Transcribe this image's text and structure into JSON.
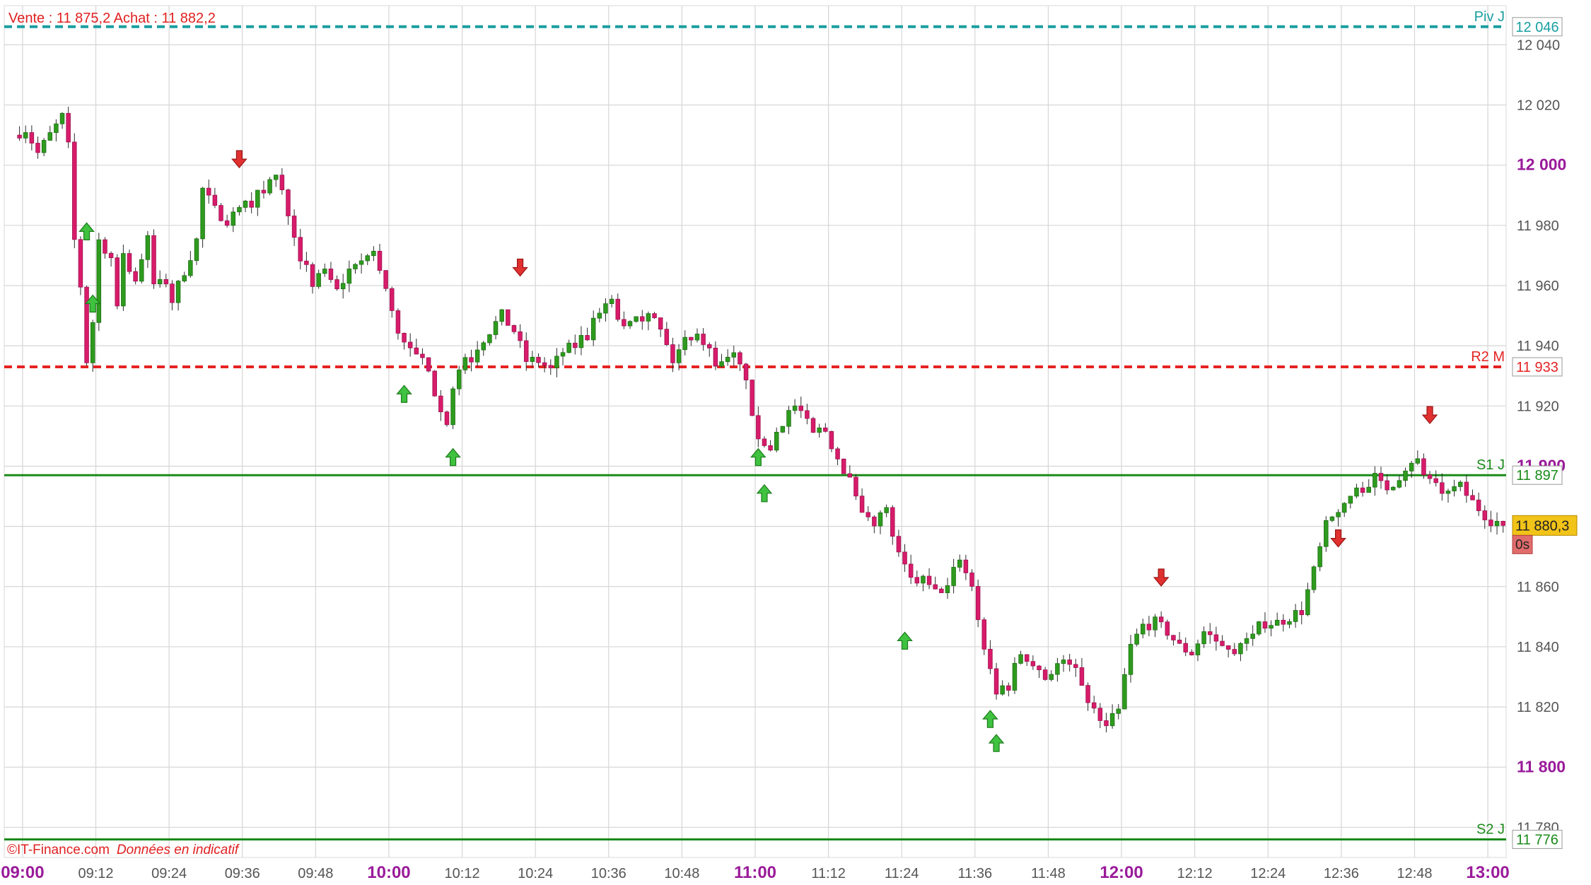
{
  "header": {
    "quote": "Vente : 11 875,2 Achat : 11 882,2"
  },
  "footer": {
    "copyright": "©IT-Finance.com",
    "disclaimer": "Données en indicatif"
  },
  "colors": {
    "bull": "#2e9b1e",
    "bear": "#d81b6a",
    "pivot": "#1a9ea0",
    "resistance": "#e52222",
    "support": "#1a8a1a",
    "axis_major": "#9a1a9a",
    "arrow_up": "#3fc23f",
    "arrow_down": "#e03030",
    "price_tag": "#f2c318",
    "timer_tag": "#e06c6c"
  },
  "chart_data": {
    "type": "candlestick",
    "interval_minutes": 1,
    "x_range": [
      "08:57",
      "13:03"
    ],
    "ylim": [
      11770,
      12053
    ],
    "y_ticks": [
      {
        "value": 11780,
        "label": "11 780",
        "major": false
      },
      {
        "value": 11800,
        "label": "11 800",
        "major": true
      },
      {
        "value": 11820,
        "label": "11 820",
        "major": false
      },
      {
        "value": 11840,
        "label": "11 840",
        "major": false
      },
      {
        "value": 11860,
        "label": "11 860",
        "major": false
      },
      {
        "value": 11880,
        "label": "11 880",
        "major": false
      },
      {
        "value": 11900,
        "label": "11 900",
        "major": true
      },
      {
        "value": 11920,
        "label": "11 920",
        "major": false
      },
      {
        "value": 11940,
        "label": "11 940",
        "major": false
      },
      {
        "value": 11960,
        "label": "11 960",
        "major": false
      },
      {
        "value": 11980,
        "label": "11 980",
        "major": false
      },
      {
        "value": 12000,
        "label": "12 000",
        "major": true
      },
      {
        "value": 12020,
        "label": "12 020",
        "major": false
      },
      {
        "value": 12040,
        "label": "12 040",
        "major": false
      }
    ],
    "x_ticks": [
      {
        "time": "09:00",
        "major": true
      },
      {
        "time": "09:12",
        "major": false
      },
      {
        "time": "09:24",
        "major": false
      },
      {
        "time": "09:36",
        "major": false
      },
      {
        "time": "09:48",
        "major": false
      },
      {
        "time": "10:00",
        "major": true
      },
      {
        "time": "10:12",
        "major": false
      },
      {
        "time": "10:24",
        "major": false
      },
      {
        "time": "10:36",
        "major": false
      },
      {
        "time": "10:48",
        "major": false
      },
      {
        "time": "11:00",
        "major": true
      },
      {
        "time": "11:12",
        "major": false
      },
      {
        "time": "11:24",
        "major": false
      },
      {
        "time": "11:36",
        "major": false
      },
      {
        "time": "11:48",
        "major": false
      },
      {
        "time": "12:00",
        "major": true
      },
      {
        "time": "12:12",
        "major": false
      },
      {
        "time": "12:24",
        "major": false
      },
      {
        "time": "12:36",
        "major": false
      },
      {
        "time": "12:48",
        "major": false
      },
      {
        "time": "13:00",
        "major": true
      }
    ],
    "levels": [
      {
        "name": "Piv J",
        "value": 12046,
        "value_label": "12 046",
        "style": "dashed",
        "color": "#1a9ea0"
      },
      {
        "name": "R2 M",
        "value": 11933,
        "value_label": "11 933",
        "style": "dashed",
        "color": "#e52222"
      },
      {
        "name": "S1 J",
        "value": 11897,
        "value_label": "11 897",
        "style": "solid",
        "color": "#1a8a1a"
      },
      {
        "name": "S2 J",
        "value": 11776,
        "value_label": "11 776",
        "style": "solid",
        "color": "#1a8a1a"
      }
    ],
    "last_price": {
      "value": 11880.3,
      "label": "11 880,3"
    },
    "timer": "0s",
    "path": [
      [
        "08:59",
        12010
      ],
      [
        "09:01",
        12012
      ],
      [
        "09:03",
        12004
      ],
      [
        "09:05",
        12010
      ],
      [
        "09:07",
        12016
      ],
      [
        "09:08",
        12006
      ],
      [
        "09:09",
        11975
      ],
      [
        "09:10",
        11960
      ],
      [
        "09:11",
        11935
      ],
      [
        "09:12",
        11948
      ],
      [
        "09:13",
        11975
      ],
      [
        "09:15",
        11970
      ],
      [
        "09:16",
        11955
      ],
      [
        "09:17",
        11970
      ],
      [
        "09:19",
        11962
      ],
      [
        "09:21",
        11975
      ],
      [
        "09:22",
        11960
      ],
      [
        "09:24",
        11962
      ],
      [
        "09:25",
        11955
      ],
      [
        "09:27",
        11965
      ],
      [
        "09:29",
        11975
      ],
      [
        "09:30",
        11992
      ],
      [
        "09:32",
        11985
      ],
      [
        "09:34",
        11982
      ],
      [
        "09:36",
        11985
      ],
      [
        "09:38",
        11988
      ],
      [
        "09:40",
        11992
      ],
      [
        "09:42",
        11997
      ],
      [
        "09:44",
        11985
      ],
      [
        "09:46",
        11970
      ],
      [
        "09:48",
        11960
      ],
      [
        "09:50",
        11965
      ],
      [
        "09:52",
        11958
      ],
      [
        "09:54",
        11965
      ],
      [
        "09:56",
        11968
      ],
      [
        "09:58",
        11972
      ],
      [
        "10:00",
        11958
      ],
      [
        "10:02",
        11945
      ],
      [
        "10:04",
        11938
      ],
      [
        "10:06",
        11935
      ],
      [
        "10:08",
        11925
      ],
      [
        "10:10",
        11915
      ],
      [
        "10:11",
        11925
      ],
      [
        "10:13",
        11935
      ],
      [
        "10:15",
        11940
      ],
      [
        "10:17",
        11945
      ],
      [
        "10:19",
        11950
      ],
      [
        "10:21",
        11945
      ],
      [
        "10:23",
        11935
      ],
      [
        "10:25",
        11935
      ],
      [
        "10:27",
        11932
      ],
      [
        "10:29",
        11938
      ],
      [
        "10:31",
        11940
      ],
      [
        "10:33",
        11945
      ],
      [
        "10:35",
        11950
      ],
      [
        "10:37",
        11955
      ],
      [
        "10:39",
        11945
      ],
      [
        "10:41",
        11948
      ],
      [
        "10:43",
        11952
      ],
      [
        "10:45",
        11945
      ],
      [
        "10:47",
        11935
      ],
      [
        "10:49",
        11942
      ],
      [
        "10:51",
        11945
      ],
      [
        "10:53",
        11938
      ],
      [
        "10:55",
        11932
      ],
      [
        "10:57",
        11935
      ],
      [
        "10:59",
        11930
      ],
      [
        "11:00",
        11915
      ],
      [
        "11:02",
        11905
      ],
      [
        "11:04",
        11912
      ],
      [
        "11:06",
        11918
      ],
      [
        "11:08",
        11918
      ],
      [
        "11:10",
        11910
      ],
      [
        "11:12",
        11912
      ],
      [
        "11:14",
        11903
      ],
      [
        "11:16",
        11895
      ],
      [
        "11:18",
        11883
      ],
      [
        "11:20",
        11882
      ],
      [
        "11:22",
        11885
      ],
      [
        "11:24",
        11870
      ],
      [
        "11:26",
        11862
      ],
      [
        "11:28",
        11862
      ],
      [
        "11:30",
        11858
      ],
      [
        "11:32",
        11860
      ],
      [
        "11:34",
        11870
      ],
      [
        "11:36",
        11860
      ],
      [
        "11:38",
        11840
      ],
      [
        "11:40",
        11825
      ],
      [
        "11:42",
        11828
      ],
      [
        "11:44",
        11838
      ],
      [
        "11:46",
        11835
      ],
      [
        "11:48",
        11830
      ],
      [
        "11:50",
        11834
      ],
      [
        "11:52",
        11835
      ],
      [
        "11:54",
        11828
      ],
      [
        "11:56",
        11818
      ],
      [
        "11:58",
        11815
      ],
      [
        "12:00",
        11820
      ],
      [
        "12:02",
        11840
      ],
      [
        "12:04",
        11847
      ],
      [
        "12:06",
        11848
      ],
      [
        "12:08",
        11845
      ],
      [
        "12:10",
        11840
      ],
      [
        "12:12",
        11838
      ],
      [
        "12:14",
        11845
      ],
      [
        "12:16",
        11842
      ],
      [
        "12:18",
        11840
      ],
      [
        "12:20",
        11842
      ],
      [
        "12:22",
        11845
      ],
      [
        "12:24",
        11848
      ],
      [
        "12:26",
        11848
      ],
      [
        "12:28",
        11850
      ],
      [
        "12:30",
        11852
      ],
      [
        "12:32",
        11865
      ],
      [
        "12:34",
        11880
      ],
      [
        "12:36",
        11885
      ],
      [
        "12:38",
        11890
      ],
      [
        "12:40",
        11893
      ],
      [
        "12:42",
        11896
      ],
      [
        "12:44",
        11893
      ],
      [
        "12:46",
        11897
      ],
      [
        "12:48",
        11902
      ],
      [
        "12:50",
        11898
      ],
      [
        "12:52",
        11893
      ],
      [
        "12:54",
        11890
      ],
      [
        "12:56",
        11893
      ],
      [
        "12:58",
        11888
      ],
      [
        "13:00",
        11884
      ],
      [
        "13:02",
        11880.3
      ]
    ],
    "signals": [
      {
        "time": "09:10",
        "price": 11978,
        "dir": "up"
      },
      {
        "time": "09:11",
        "price": 11954,
        "dir": "up"
      },
      {
        "time": "09:35",
        "price": 12002,
        "dir": "down"
      },
      {
        "time": "10:02",
        "price": 11924,
        "dir": "up"
      },
      {
        "time": "10:10",
        "price": 11903,
        "dir": "up"
      },
      {
        "time": "10:21",
        "price": 11966,
        "dir": "down"
      },
      {
        "time": "11:00",
        "price": 11903,
        "dir": "up"
      },
      {
        "time": "11:01",
        "price": 11891,
        "dir": "up"
      },
      {
        "time": "11:24",
        "price": 11842,
        "dir": "up"
      },
      {
        "time": "11:38",
        "price": 11816,
        "dir": "up"
      },
      {
        "time": "11:39",
        "price": 11808,
        "dir": "up"
      },
      {
        "time": "12:06",
        "price": 11863,
        "dir": "down"
      },
      {
        "time": "12:35",
        "price": 11876,
        "dir": "down"
      },
      {
        "time": "12:50",
        "price": 11917,
        "dir": "down"
      }
    ]
  }
}
